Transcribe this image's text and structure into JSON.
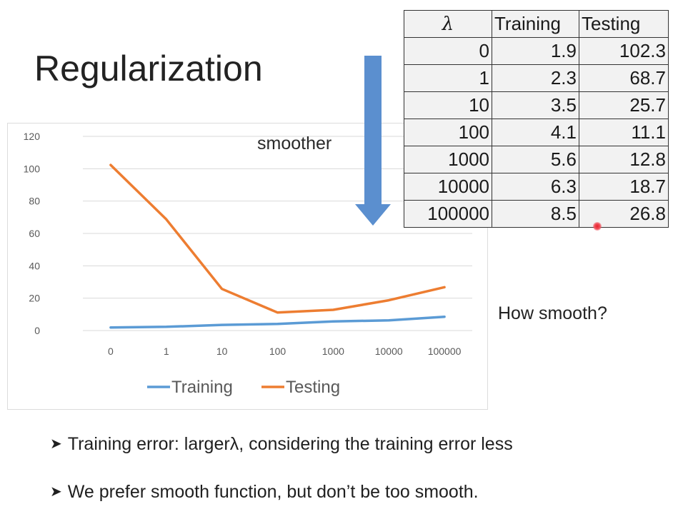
{
  "slide": {
    "title": "Regularization",
    "smoother_label": "smoother",
    "side_question": "How smooth?",
    "bullets": [
      "Training error: largerλ, considering the training error less",
      "We prefer smooth function, but don’t be too smooth."
    ]
  },
  "table": {
    "headers": [
      "λ",
      "Training",
      "Testing"
    ],
    "rows": [
      [
        "0",
        "1.9",
        "102.3"
      ],
      [
        "1",
        "2.3",
        "68.7"
      ],
      [
        "10",
        "3.5",
        "25.7"
      ],
      [
        "100",
        "4.1",
        "11.1"
      ],
      [
        "1000",
        "5.6",
        "12.8"
      ],
      [
        "10000",
        "6.3",
        "18.7"
      ],
      [
        "100000",
        "8.5",
        "26.8"
      ]
    ]
  },
  "colors": {
    "training": "#5b9bd5",
    "testing": "#ed7d31",
    "arrow": "#5b8fcf",
    "grid": "#d9d9d9",
    "axis_text": "#595959"
  },
  "chart_data": {
    "type": "line",
    "categories": [
      "0",
      "1",
      "10",
      "100",
      "1000",
      "10000",
      "100000"
    ],
    "series": [
      {
        "name": "Training",
        "values": [
          1.9,
          2.3,
          3.5,
          4.1,
          5.6,
          6.3,
          8.5
        ]
      },
      {
        "name": "Testing",
        "values": [
          102.3,
          68.7,
          25.7,
          11.1,
          12.8,
          18.7,
          26.8
        ]
      }
    ],
    "ylim": [
      0,
      120
    ],
    "yticks": [
      0,
      20,
      40,
      60,
      80,
      100,
      120
    ],
    "grid": true,
    "legend_position": "bottom"
  }
}
